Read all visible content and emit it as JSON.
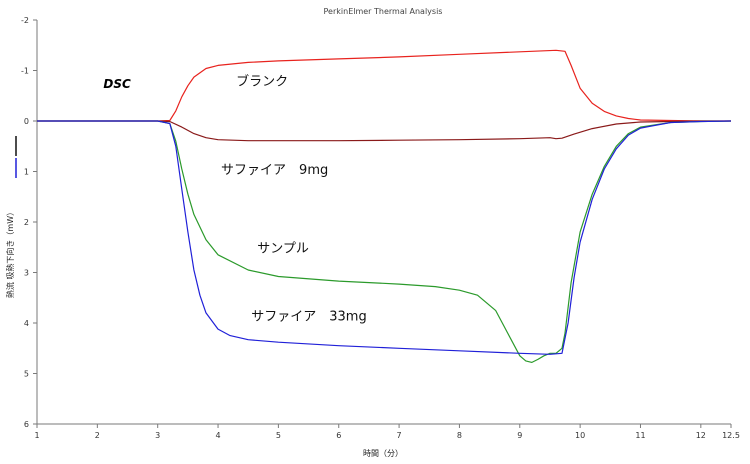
{
  "chart_data": {
    "type": "line",
    "title": "PerkinElmer Thermal Analysis",
    "xlabel": "時間（分）",
    "ylabel": "熱流 吸熱下向き（mW）",
    "xlim": [
      1,
      12.5
    ],
    "ylim": [
      -2,
      6
    ],
    "y_inverted": true,
    "grid": false,
    "x_ticks": [
      "1",
      "2",
      "3",
      "4",
      "5",
      "6",
      "7",
      "8",
      "9",
      "10",
      "11",
      "12",
      "12.5"
    ],
    "y_ticks": [
      "-2",
      "-1",
      "0",
      "1",
      "2",
      "3",
      "4",
      "5",
      "6"
    ],
    "annotations": [
      {
        "text": "DSC",
        "x": 2.1,
        "y": -0.65
      },
      {
        "text": "ブランク",
        "x": 4.3,
        "y": -0.7
      },
      {
        "text": "サファイア　9mg",
        "x": 4.05,
        "y": 1.05
      },
      {
        "text": "サンプル",
        "x": 4.65,
        "y": 2.6
      },
      {
        "text": "サファイア　33mg",
        "x": 4.55,
        "y": 3.95
      }
    ],
    "series": [
      {
        "color": "#e8231e",
        "x": [
          1,
          3.0,
          3.2,
          3.3,
          3.4,
          3.5,
          3.6,
          3.8,
          4.0,
          4.5,
          5,
          6,
          7,
          8,
          9,
          9.6,
          9.75,
          9.85,
          10.0,
          10.2,
          10.4,
          10.6,
          10.8,
          11.0,
          11.5,
          12,
          12.5
        ],
        "y": [
          0,
          0,
          -0.01,
          -0.2,
          -0.48,
          -0.7,
          -0.87,
          -1.04,
          -1.1,
          -1.16,
          -1.19,
          -1.23,
          -1.27,
          -1.32,
          -1.37,
          -1.4,
          -1.38,
          -1.1,
          -0.65,
          -0.35,
          -0.19,
          -0.1,
          -0.05,
          -0.02,
          -0.01,
          0,
          0
        ]
      },
      {
        "color": "#8a1a1a",
        "x": [
          1,
          3.0,
          3.2,
          3.4,
          3.6,
          3.8,
          4.0,
          4.5,
          5,
          6,
          7,
          8,
          9,
          9.5,
          9.6,
          9.7,
          9.9,
          10.2,
          10.6,
          11.0,
          11.5,
          12,
          12.5
        ],
        "y": [
          0,
          0,
          0.01,
          0.12,
          0.25,
          0.33,
          0.37,
          0.39,
          0.39,
          0.39,
          0.38,
          0.37,
          0.35,
          0.33,
          0.35,
          0.34,
          0.26,
          0.15,
          0.06,
          0.02,
          0.01,
          0,
          0
        ]
      },
      {
        "color": "#2b9a2b",
        "x": [
          1,
          3.0,
          3.2,
          3.3,
          3.4,
          3.5,
          3.6,
          3.8,
          4.0,
          4.5,
          5,
          6,
          7,
          7.6,
          8.0,
          8.3,
          8.6,
          8.8,
          9.0,
          9.1,
          9.2,
          9.3,
          9.4,
          9.5,
          9.6,
          9.7,
          9.75,
          9.85,
          10.0,
          10.2,
          10.4,
          10.6,
          10.8,
          11.0,
          11.5,
          12,
          12.5
        ],
        "y": [
          0,
          0,
          0.05,
          0.4,
          0.95,
          1.45,
          1.85,
          2.35,
          2.65,
          2.95,
          3.08,
          3.17,
          3.23,
          3.28,
          3.35,
          3.45,
          3.75,
          4.2,
          4.65,
          4.75,
          4.78,
          4.72,
          4.65,
          4.6,
          4.6,
          4.5,
          4.2,
          3.2,
          2.2,
          1.45,
          0.9,
          0.5,
          0.25,
          0.12,
          0.03,
          0.01,
          0
        ]
      },
      {
        "color": "#2020d8",
        "x": [
          1,
          3.0,
          3.2,
          3.3,
          3.4,
          3.5,
          3.6,
          3.7,
          3.8,
          4.0,
          4.2,
          4.5,
          5,
          6,
          7,
          8,
          9,
          9.5,
          9.7,
          9.8,
          9.9,
          10.0,
          10.2,
          10.4,
          10.6,
          10.8,
          11.0,
          11.5,
          12,
          12.5
        ],
        "y": [
          0,
          0,
          0.05,
          0.5,
          1.35,
          2.2,
          2.95,
          3.45,
          3.8,
          4.12,
          4.25,
          4.33,
          4.38,
          4.45,
          4.5,
          4.55,
          4.6,
          4.62,
          4.6,
          4.0,
          3.1,
          2.4,
          1.55,
          0.95,
          0.55,
          0.28,
          0.14,
          0.03,
          0.01,
          0
        ]
      }
    ]
  },
  "colors": {
    "axis": "#7a7a7a",
    "blue_marker": "#2020d8",
    "black_marker": "#111111"
  }
}
